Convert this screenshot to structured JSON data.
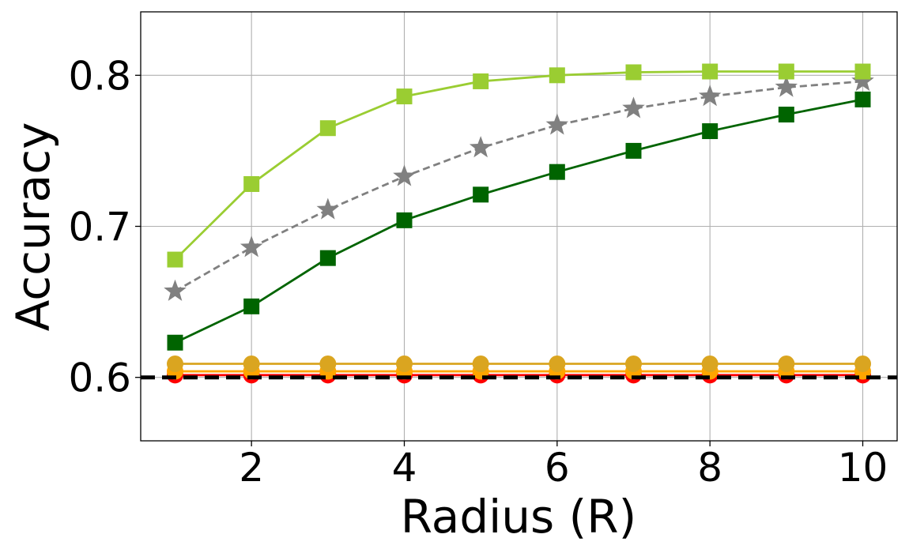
{
  "chart_data": {
    "type": "line",
    "title": "",
    "xlabel": "Radius (R)",
    "ylabel": "Accuracy",
    "xlim": [
      0.55,
      10.45
    ],
    "ylim": [
      0.558,
      0.842
    ],
    "xticks": [
      2,
      4,
      6,
      8,
      10
    ],
    "yticks": [
      0.6,
      0.7,
      0.8
    ],
    "grid": true,
    "legend": "none",
    "x": [
      1,
      2,
      3,
      4,
      5,
      6,
      7,
      8,
      9,
      10
    ],
    "baseline": {
      "value": 0.6,
      "color": "#000000",
      "style": "dashed"
    },
    "series": [
      {
        "color": "#9acd32",
        "marker": "square",
        "line": "solid",
        "values": [
          0.678,
          0.728,
          0.765,
          0.786,
          0.796,
          0.8,
          0.802,
          0.8025,
          0.8025,
          0.8025
        ]
      },
      {
        "color": "#808080",
        "marker": "star",
        "line": "dashed",
        "values": [
          0.657,
          0.686,
          0.711,
          0.733,
          0.752,
          0.767,
          0.778,
          0.786,
          0.792,
          0.796
        ]
      },
      {
        "color": "#006400",
        "marker": "square",
        "line": "solid",
        "values": [
          0.623,
          0.647,
          0.679,
          0.704,
          0.721,
          0.736,
          0.75,
          0.763,
          0.774,
          0.784
        ]
      },
      {
        "color": "#daa520",
        "marker": "circle",
        "line": "solid",
        "values": [
          0.609,
          0.609,
          0.609,
          0.609,
          0.609,
          0.609,
          0.609,
          0.609,
          0.609,
          0.609
        ]
      },
      {
        "color": "#ffa500",
        "marker": "circle",
        "line": "solid",
        "values": [
          0.604,
          0.604,
          0.604,
          0.604,
          0.604,
          0.604,
          0.604,
          0.604,
          0.604,
          0.604
        ]
      },
      {
        "color": "#ff0000",
        "marker": "circle",
        "line": "solid",
        "values": [
          0.6015,
          0.6015,
          0.6015,
          0.6015,
          0.6015,
          0.6015,
          0.6015,
          0.6015,
          0.6015,
          0.6015
        ]
      }
    ]
  }
}
